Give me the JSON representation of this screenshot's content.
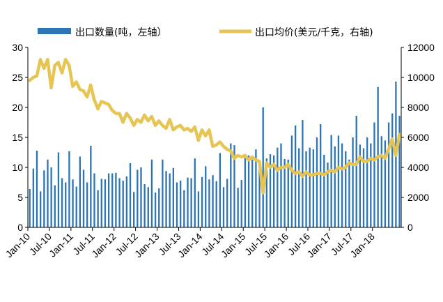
{
  "chart_data": {
    "type": "bar+line",
    "title": "",
    "legend_position": "top",
    "series": [
      {
        "name": "出口数量(吨，左轴）",
        "type": "bar",
        "axis": "left",
        "color": "#2E75B6",
        "values": [
          6.4,
          9.8,
          12.8,
          6.0,
          9.5,
          11.3,
          10.0,
          7.0,
          12.5,
          8.2,
          7.5,
          12.7,
          8.0,
          6.8,
          11.8,
          9.6,
          7.5,
          13.6,
          9.0,
          6.2,
          8.1,
          8.0,
          9.0,
          9.0,
          9.1,
          8.2,
          7.8,
          8.5,
          10.7,
          5.9,
          9.6,
          10.0,
          7.2,
          6.7,
          11.3,
          5.8,
          6.5,
          11.3,
          9.4,
          9.0,
          9.9,
          7.5,
          7.8,
          6.2,
          8.3,
          8.2,
          11.5,
          6.0,
          8.4,
          10.2,
          8.0,
          8.7,
          7.7,
          12.4,
          6.7,
          8.1,
          14.0,
          13.7,
          6.6,
          7.9,
          11.8,
          12.0,
          11.3,
          13.0,
          10.7,
          20.0,
          11.5,
          12.2,
          12.0,
          13.3,
          14.0,
          11.4,
          11.3,
          15.3,
          17.0,
          13.2,
          17.9,
          12.7,
          13.3,
          13.0,
          15.0,
          17.2,
          12.1,
          10.8,
          15.4,
          13.5,
          15.3,
          14.0,
          12.7,
          11.3,
          15.0,
          18.6,
          13.8,
          13.2,
          15.0,
          14.0,
          17.5,
          23.4,
          15.2,
          14.5,
          17.5,
          19.0,
          24.3,
          18.6
        ]
      },
      {
        "name": "出口均价(美元/千克，右轴)",
        "type": "line",
        "axis": "right",
        "color": "#E6C553",
        "values": [
          9800,
          10000,
          10100,
          11200,
          10600,
          11200,
          9300,
          10800,
          11000,
          10300,
          11200,
          10800,
          9400,
          9700,
          9200,
          9100,
          8700,
          9500,
          8500,
          7900,
          8400,
          8300,
          8200,
          7800,
          7600,
          7600,
          7000,
          7600,
          7300,
          6800,
          7200,
          7000,
          7500,
          7100,
          7400,
          6800,
          7100,
          6800,
          6600,
          7200,
          6500,
          6700,
          6800,
          6500,
          6600,
          6400,
          6700,
          5800,
          6500,
          6100,
          6500,
          5400,
          5500,
          5700,
          5400,
          5200,
          5100,
          4600,
          4800,
          4700,
          4800,
          4500,
          4700,
          4500,
          4400,
          2300,
          4300,
          4000,
          4200,
          3800,
          4000,
          4000,
          4200,
          3800,
          3600,
          3700,
          3400,
          3700,
          3500,
          3500,
          3600,
          3600,
          3500,
          3700,
          3800,
          3700,
          4000,
          3900,
          4000,
          4300,
          4200,
          4200,
          4700,
          4400,
          4400,
          4600,
          4500,
          4700,
          4800,
          4600,
          5200,
          5900,
          4800,
          6200
        ]
      }
    ],
    "x_tick_labels": [
      "Jan-10",
      "Jul-10",
      "Jan-11",
      "Jul-11",
      "Jan-12",
      "Jul-12",
      "Jan-13",
      "Jul-13",
      "Jan-14",
      "Jul-14",
      "Jan-15",
      "Jul-15",
      "Jan-16",
      "Jul-16",
      "Jan-17",
      "Jul-17",
      "Jan-18"
    ],
    "y_left": {
      "min": 0,
      "max": 30,
      "ticks": [
        "0",
        "5",
        "10",
        "15",
        "20",
        "25",
        "30"
      ]
    },
    "y_right": {
      "min": 0,
      "max": 12000,
      "ticks": [
        "0",
        "2000",
        "4000",
        "6000",
        "8000",
        "10000",
        "12000"
      ]
    },
    "grid": false
  }
}
